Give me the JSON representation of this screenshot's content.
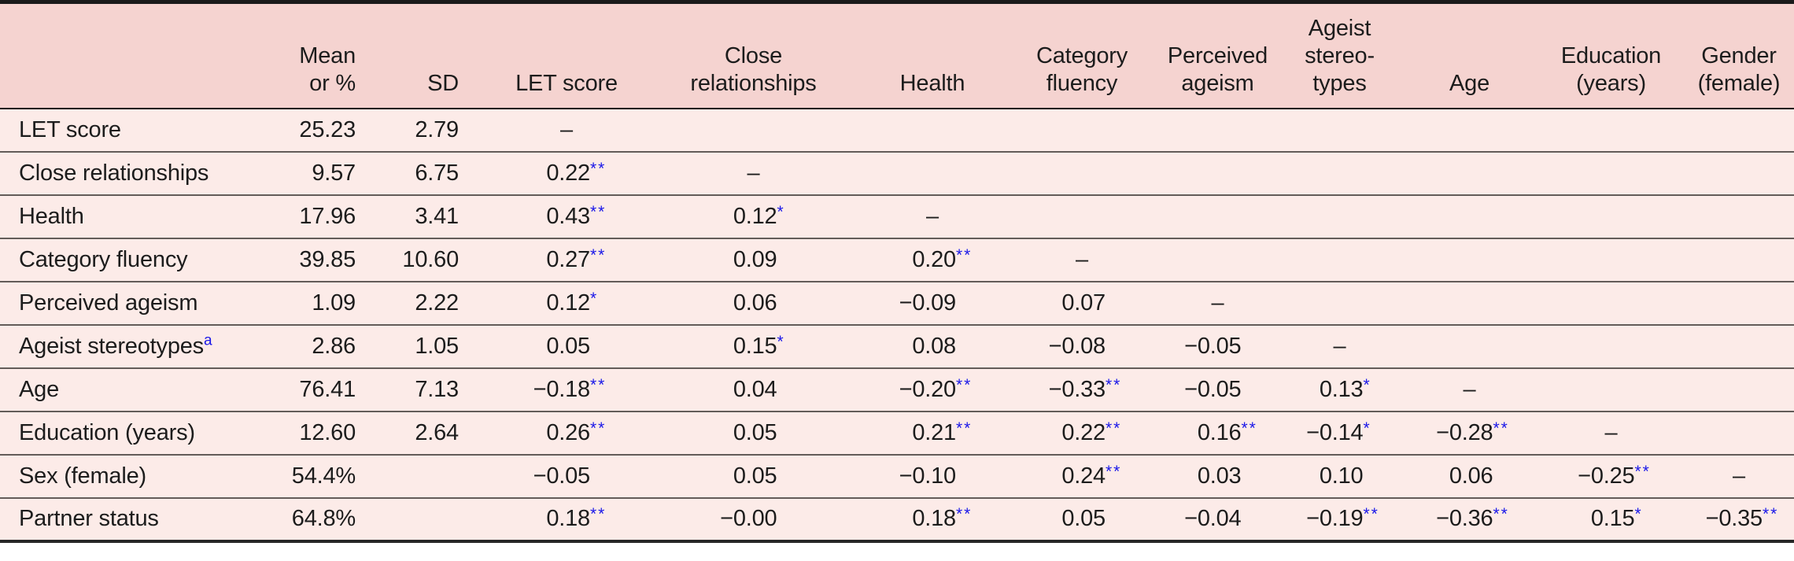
{
  "colors": {
    "header_bg": "#f5d3d0",
    "row_bg": "#fcebe8",
    "text": "#1c1c1c",
    "significance_blue": "#1a17e8",
    "row_divider": "#635c59",
    "frame": "#1a1a1a"
  },
  "table": {
    "columns": [
      {
        "key": "label",
        "lines": []
      },
      {
        "key": "mean",
        "lines": [
          "Mean",
          "or %"
        ]
      },
      {
        "key": "sd",
        "lines": [
          "SD"
        ]
      },
      {
        "key": "let",
        "lines": [
          "LET score"
        ]
      },
      {
        "key": "close",
        "lines": [
          "Close",
          "relationships"
        ]
      },
      {
        "key": "health",
        "lines": [
          "Health"
        ]
      },
      {
        "key": "category",
        "lines": [
          "Category",
          "fluency"
        ]
      },
      {
        "key": "perceived",
        "lines": [
          "Perceived",
          "ageism"
        ]
      },
      {
        "key": "ageist",
        "lines": [
          "Ageist",
          "stereo-",
          "types"
        ]
      },
      {
        "key": "age",
        "lines": [
          "Age"
        ]
      },
      {
        "key": "education",
        "lines": [
          "Education",
          "(years)"
        ]
      },
      {
        "key": "gender",
        "lines": [
          "Gender",
          "(female)"
        ]
      }
    ],
    "rows": [
      {
        "label": "LET score",
        "mean": "25.23",
        "sd": "2.79",
        "cells": [
          {
            "d": "–"
          },
          null,
          null,
          null,
          null,
          null,
          null,
          null,
          null
        ]
      },
      {
        "label": "Close relationships",
        "mean": "9.57",
        "sd": "6.75",
        "cells": [
          {
            "v": "0.22",
            "s": "**"
          },
          {
            "d": "–"
          },
          null,
          null,
          null,
          null,
          null,
          null,
          null
        ]
      },
      {
        "label": "Health",
        "mean": "17.96",
        "sd": "3.41",
        "cells": [
          {
            "v": "0.43",
            "s": "**"
          },
          {
            "v": "0.12",
            "s": "*"
          },
          {
            "d": "–"
          },
          null,
          null,
          null,
          null,
          null,
          null
        ]
      },
      {
        "label": "Category fluency",
        "mean": "39.85",
        "sd": "10.60",
        "cells": [
          {
            "v": "0.27",
            "s": "**"
          },
          {
            "v": "0.09",
            "s": ""
          },
          {
            "v": "0.20",
            "s": "**"
          },
          {
            "d": "–"
          },
          null,
          null,
          null,
          null,
          null
        ]
      },
      {
        "label": "Perceived ageism",
        "mean": "1.09",
        "sd": "2.22",
        "cells": [
          {
            "v": "0.12",
            "s": "*"
          },
          {
            "v": "0.06",
            "s": ""
          },
          {
            "v": "−0.09",
            "s": ""
          },
          {
            "v": "0.07",
            "s": ""
          },
          {
            "d": "–"
          },
          null,
          null,
          null,
          null
        ]
      },
      {
        "label": "Ageist stereotypes",
        "sup": "a",
        "mean": "2.86",
        "sd": "1.05",
        "cells": [
          {
            "v": "0.05",
            "s": ""
          },
          {
            "v": "0.15",
            "s": "*"
          },
          {
            "v": "0.08",
            "s": ""
          },
          {
            "v": "−0.08",
            "s": ""
          },
          {
            "v": "−0.05",
            "s": ""
          },
          {
            "d": "–"
          },
          null,
          null,
          null
        ]
      },
      {
        "label": "Age",
        "mean": "76.41",
        "sd": "7.13",
        "cells": [
          {
            "v": "−0.18",
            "s": "**"
          },
          {
            "v": "0.04",
            "s": ""
          },
          {
            "v": "−0.20",
            "s": "**"
          },
          {
            "v": "−0.33",
            "s": "**"
          },
          {
            "v": "−0.05",
            "s": ""
          },
          {
            "v": "0.13",
            "s": "*"
          },
          {
            "d": "–"
          },
          null,
          null
        ]
      },
      {
        "label": "Education (years)",
        "mean": "12.60",
        "sd": "2.64",
        "cells": [
          {
            "v": "0.26",
            "s": "**"
          },
          {
            "v": "0.05",
            "s": ""
          },
          {
            "v": "0.21",
            "s": "**"
          },
          {
            "v": "0.22",
            "s": "**"
          },
          {
            "v": "0.16",
            "s": "**"
          },
          {
            "v": "−0.14",
            "s": "*"
          },
          {
            "v": "−0.28",
            "s": "**"
          },
          {
            "d": "–"
          },
          null
        ]
      },
      {
        "label": "Sex (female)",
        "mean": "54.4%",
        "sd": "",
        "cells": [
          {
            "v": "−0.05",
            "s": ""
          },
          {
            "v": "0.05",
            "s": ""
          },
          {
            "v": "−0.10",
            "s": ""
          },
          {
            "v": "0.24",
            "s": "**"
          },
          {
            "v": "0.03",
            "s": ""
          },
          {
            "v": "0.10",
            "s": ""
          },
          {
            "v": "0.06",
            "s": ""
          },
          {
            "v": "−0.25",
            "s": "**"
          },
          {
            "d": "–"
          }
        ]
      },
      {
        "label": "Partner status",
        "mean": "64.8%",
        "sd": "",
        "cells": [
          {
            "v": "0.18",
            "s": "**"
          },
          {
            "v": "−0.00",
            "s": ""
          },
          {
            "v": "0.18",
            "s": "**"
          },
          {
            "v": "0.05",
            "s": ""
          },
          {
            "v": "−0.04",
            "s": ""
          },
          {
            "v": "−0.19",
            "s": "**"
          },
          {
            "v": "−0.36",
            "s": "**"
          },
          {
            "v": "0.15",
            "s": "*"
          },
          {
            "v": "−0.35",
            "s": "**"
          }
        ]
      }
    ]
  }
}
